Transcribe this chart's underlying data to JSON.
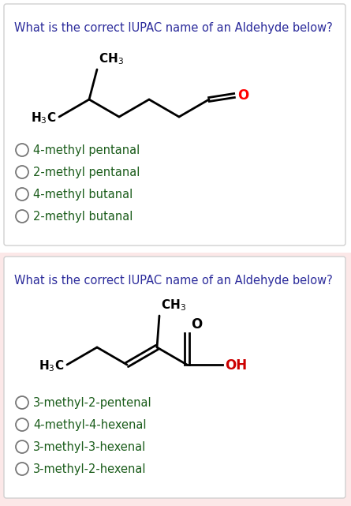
{
  "bg_outer_top": "#ffffff",
  "bg_outer_bottom": "#fce8e8",
  "card_color": "#ffffff",
  "border_color": "#d0d0d0",
  "question_color": "#2b2b9b",
  "option_color": "#1a5c1a",
  "question1": "What is the correct IUPAC name of an Aldehyde below?",
  "question2": "What is the correct IUPAC name of an Aldehyde below?",
  "options1": [
    "4-methyl pentanal",
    "2-methyl pentanal",
    "4-methyl butanal",
    "2-methyl butanal"
  ],
  "options2": [
    "3-methyl-2-pentenal",
    "4-methyl-4-hexenal",
    "3-methyl-3-hexenal",
    "3-methyl-2-hexenal"
  ],
  "title_fontsize": 10.5,
  "option_fontsize": 10.5,
  "mol_fontsize": 11,
  "mol_lw": 2.0
}
